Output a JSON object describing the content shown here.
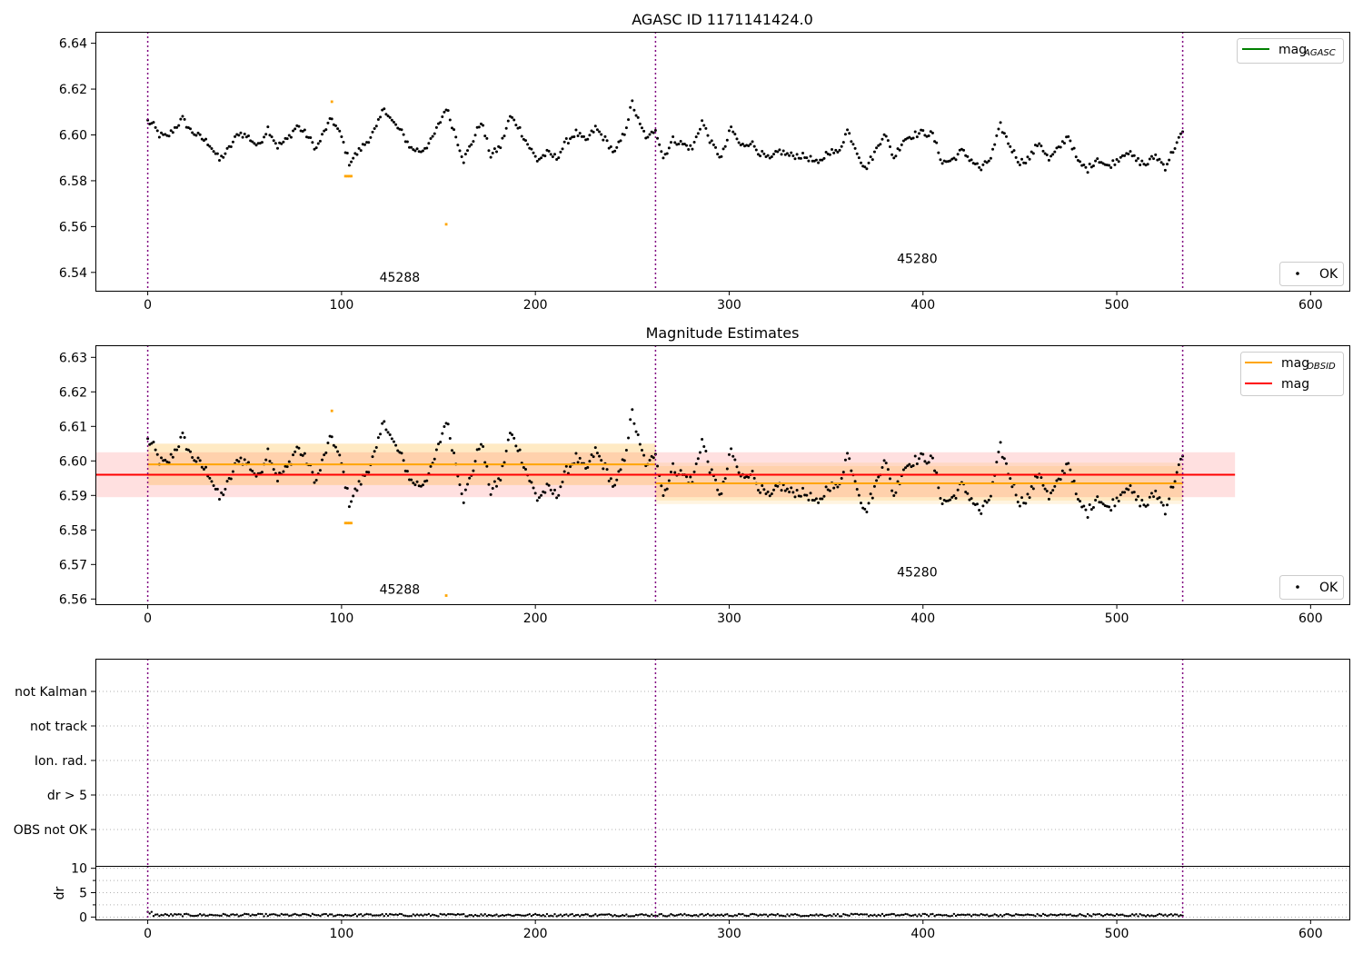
{
  "chart_data": [
    {
      "type": "scatter",
      "title": "AGASC ID 1171141424.0",
      "xlim": [
        -27,
        620
      ],
      "ylim": [
        6.532,
        6.645
      ],
      "xticks": [
        0,
        100,
        200,
        300,
        400,
        500,
        600
      ],
      "yticks": [
        6.54,
        6.56,
        6.58,
        6.6,
        6.62,
        6.64
      ],
      "ytick_labels": [
        "6.54",
        "6.56",
        "6.58",
        "6.60",
        "6.62",
        "6.64"
      ],
      "vlines": [
        0,
        262,
        534
      ],
      "annotations": [
        {
          "text": "45288",
          "x": 130,
          "y": 6.536
        },
        {
          "text": "45280",
          "x": 397,
          "y": 6.544
        }
      ],
      "legend_upper": {
        "label": "mag",
        "subscript": "AGASC",
        "color": "#008000",
        "placement": "top-right"
      },
      "legend_lower": {
        "label": "OK",
        "color": "#000000",
        "placement": "bottom-right"
      },
      "outliers": [
        {
          "x": 95,
          "y": 6.6145
        },
        {
          "x": 102,
          "y": 6.582
        },
        {
          "x": 103,
          "y": 6.582
        },
        {
          "x": 104,
          "y": 6.582
        },
        {
          "x": 105,
          "y": 6.582
        },
        {
          "x": 154,
          "y": 6.561
        }
      ],
      "grid": false
    },
    {
      "type": "scatter",
      "title": "Magnitude Estimates",
      "xlim": [
        -27,
        620
      ],
      "ylim": [
        6.5585,
        6.6335
      ],
      "xticks": [
        0,
        100,
        200,
        300,
        400,
        500,
        600
      ],
      "yticks": [
        6.56,
        6.57,
        6.58,
        6.59,
        6.6,
        6.61,
        6.62,
        6.63
      ],
      "ytick_labels": [
        "6.56",
        "6.57",
        "6.58",
        "6.59",
        "6.60",
        "6.61",
        "6.62",
        "6.63"
      ],
      "vlines": [
        0,
        262,
        534
      ],
      "annotations": [
        {
          "text": "45288",
          "x": 130,
          "y": 6.5615
        },
        {
          "text": "45280",
          "x": 397,
          "y": 6.5665
        }
      ],
      "mag": {
        "value": 6.596,
        "band": [
          6.5895,
          6.6025
        ],
        "x_range": [
          -27,
          561
        ],
        "color": "#ff0000"
      },
      "obsid_mag": [
        {
          "x_range": [
            0,
            262
          ],
          "value": 6.599,
          "inner": [
            6.593,
            6.605
          ],
          "outer": [
            6.593,
            6.605
          ]
        },
        {
          "x_range": [
            262,
            534
          ],
          "value": 6.5935,
          "inner": [
            6.5885,
            6.5985
          ],
          "outer": [
            6.5875,
            6.5995
          ]
        }
      ],
      "legend_upper": [
        {
          "label": "mag",
          "subscript": "OBSID",
          "color": "#ffa500"
        },
        {
          "label": "mag",
          "subscript": "",
          "color": "#ff0000"
        }
      ],
      "legend_lower": {
        "label": "OK",
        "color": "#000000",
        "placement": "bottom-right"
      },
      "outliers": [
        {
          "x": 95,
          "y": 6.6145
        },
        {
          "x": 102,
          "y": 6.582
        },
        {
          "x": 103,
          "y": 6.582
        },
        {
          "x": 104,
          "y": 6.582
        },
        {
          "x": 105,
          "y": 6.582
        },
        {
          "x": 154,
          "y": 6.561
        }
      ],
      "grid": false
    },
    {
      "type": "scatter",
      "title": "",
      "categories": [
        "not Kalman",
        "not track",
        "Ion. rad.",
        "dr > 5",
        "OBS not OK"
      ],
      "flagged_points": [],
      "xlim": [
        -27,
        620
      ],
      "vlines": [
        0,
        262,
        534
      ],
      "grid": true
    },
    {
      "type": "scatter",
      "title": "",
      "ylabel": "dr",
      "ylim": [
        -0.5,
        10.5
      ],
      "yticks": [
        0,
        5,
        10
      ],
      "ytick_labels": [
        "0",
        "5",
        "10"
      ],
      "xlim": [
        -27,
        620
      ],
      "xticks": [
        0,
        100,
        200,
        300,
        400,
        500,
        600
      ],
      "vlines": [
        0,
        262,
        534
      ],
      "dr_typical": 0.4,
      "grid": true
    }
  ],
  "series_mag": {
    "n": 535,
    "anchors": [
      [
        0,
        6.606
      ],
      [
        3,
        6.604
      ],
      [
        6,
        6.6
      ],
      [
        10,
        6.599
      ],
      [
        15,
        6.604
      ],
      [
        18,
        6.607
      ],
      [
        22,
        6.602
      ],
      [
        27,
        6.599
      ],
      [
        32,
        6.596
      ],
      [
        37,
        6.589
      ],
      [
        42,
        6.594
      ],
      [
        47,
        6.601
      ],
      [
        52,
        6.599
      ],
      [
        57,
        6.595
      ],
      [
        62,
        6.603
      ],
      [
        67,
        6.595
      ],
      [
        72,
        6.598
      ],
      [
        77,
        6.604
      ],
      [
        82,
        6.6
      ],
      [
        87,
        6.594
      ],
      [
        92,
        6.603
      ],
      [
        95,
        6.607
      ],
      [
        100,
        6.599
      ],
      [
        104,
        6.588
      ],
      [
        108,
        6.592
      ],
      [
        113,
        6.597
      ],
      [
        118,
        6.603
      ],
      [
        122,
        6.612
      ],
      [
        126,
        6.606
      ],
      [
        131,
        6.601
      ],
      [
        136,
        6.594
      ],
      [
        141,
        6.593
      ],
      [
        146,
        6.597
      ],
      [
        150,
        6.604
      ],
      [
        154,
        6.612
      ],
      [
        158,
        6.602
      ],
      [
        163,
        6.589
      ],
      [
        168,
        6.598
      ],
      [
        172,
        6.606
      ],
      [
        177,
        6.591
      ],
      [
        182,
        6.595
      ],
      [
        187,
        6.608
      ],
      [
        191,
        6.604
      ],
      [
        196,
        6.596
      ],
      [
        201,
        6.589
      ],
      [
        206,
        6.592
      ],
      [
        211,
        6.59
      ],
      [
        216,
        6.597
      ],
      [
        221,
        6.601
      ],
      [
        226,
        6.597
      ],
      [
        231,
        6.603
      ],
      [
        236,
        6.598
      ],
      [
        241,
        6.592
      ],
      [
        246,
        6.601
      ],
      [
        250,
        6.614
      ],
      [
        254,
        6.604
      ],
      [
        258,
        6.598
      ],
      [
        262,
        6.603
      ],
      [
        266,
        6.59
      ],
      [
        271,
        6.598
      ],
      [
        276,
        6.596
      ],
      [
        281,
        6.594
      ],
      [
        286,
        6.606
      ],
      [
        291,
        6.596
      ],
      [
        296,
        6.59
      ],
      [
        301,
        6.603
      ],
      [
        306,
        6.595
      ],
      [
        311,
        6.597
      ],
      [
        316,
        6.592
      ],
      [
        321,
        6.589
      ],
      [
        326,
        6.593
      ],
      [
        331,
        6.591
      ],
      [
        336,
        6.591
      ],
      [
        341,
        6.59
      ],
      [
        346,
        6.587
      ],
      [
        351,
        6.593
      ],
      [
        356,
        6.592
      ],
      [
        361,
        6.602
      ],
      [
        366,
        6.593
      ],
      [
        370,
        6.585
      ],
      [
        375,
        6.592
      ],
      [
        380,
        6.601
      ],
      [
        385,
        6.59
      ],
      [
        390,
        6.598
      ],
      [
        395,
        6.6
      ],
      [
        400,
        6.601
      ],
      [
        405,
        6.6
      ],
      [
        410,
        6.588
      ],
      [
        415,
        6.589
      ],
      [
        420,
        6.593
      ],
      [
        425,
        6.589
      ],
      [
        430,
        6.585
      ],
      [
        435,
        6.59
      ],
      [
        440,
        6.604
      ],
      [
        445,
        6.595
      ],
      [
        450,
        6.588
      ],
      [
        455,
        6.59
      ],
      [
        460,
        6.597
      ],
      [
        465,
        6.589
      ],
      [
        470,
        6.594
      ],
      [
        475,
        6.6
      ],
      [
        480,
        6.588
      ],
      [
        485,
        6.585
      ],
      [
        490,
        6.59
      ],
      [
        495,
        6.586
      ],
      [
        500,
        6.589
      ],
      [
        505,
        6.593
      ],
      [
        510,
        6.589
      ],
      [
        515,
        6.587
      ],
      [
        520,
        6.591
      ],
      [
        525,
        6.586
      ],
      [
        530,
        6.595
      ],
      [
        534,
        6.601
      ]
    ]
  }
}
